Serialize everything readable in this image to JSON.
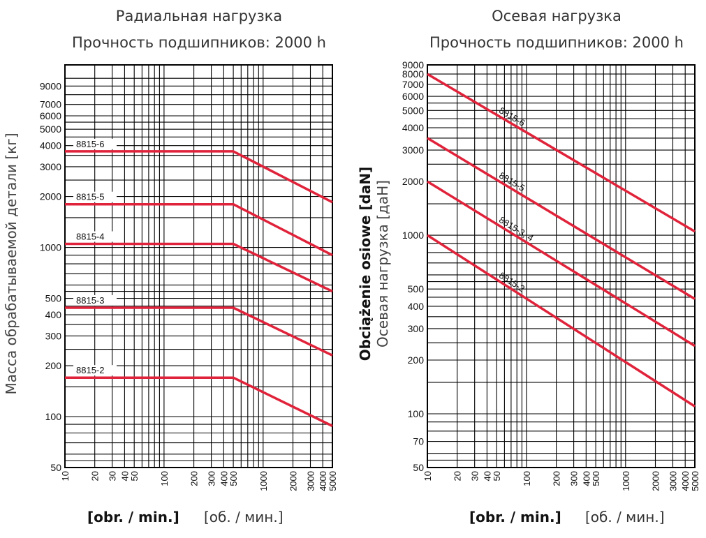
{
  "colors": {
    "series_line": "#e0233a",
    "grid": "#000000",
    "background": "#ffffff"
  },
  "chart_data": [
    {
      "type": "line",
      "title_line1": "Радиальная нагрузка",
      "title_line2": "Прочность подшипников: 2000 h",
      "ylabel": "Масса обрабатываемой детали [кг]",
      "xlabel_bold": "[obr. / min.]",
      "xlabel_thin": "[об. / мин.]",
      "x_scale": "log",
      "y_scale": "log",
      "xlim": [
        10,
        5000
      ],
      "ylim": [
        50,
        12000
      ],
      "x_ticks": [
        "10",
        "20",
        "30",
        "40",
        "50",
        "100",
        "200",
        "300",
        "400",
        "500",
        "1000",
        "2000",
        "3000",
        "4000",
        "5000"
      ],
      "y_ticks": [
        "50",
        "100",
        "200",
        "300",
        "400",
        "500",
        "1000",
        "2000",
        "3000",
        "4000",
        "5000",
        "6000",
        "7000",
        "9000"
      ],
      "grid": true,
      "series": [
        {
          "name": "8815-6",
          "points": [
            [
              10,
              3700
            ],
            [
              500,
              3700
            ],
            [
              5000,
              1850
            ]
          ]
        },
        {
          "name": "8815-5",
          "points": [
            [
              10,
              1800
            ],
            [
              500,
              1800
            ],
            [
              5000,
              900
            ]
          ]
        },
        {
          "name": "8815-4",
          "points": [
            [
              10,
              1050
            ],
            [
              500,
              1050
            ],
            [
              5000,
              550
            ]
          ]
        },
        {
          "name": "8815-3",
          "points": [
            [
              10,
              440
            ],
            [
              500,
              440
            ],
            [
              5000,
              230
            ]
          ]
        },
        {
          "name": "8815-2",
          "points": [
            [
              10,
              170
            ],
            [
              500,
              170
            ],
            [
              5000,
              88
            ]
          ]
        }
      ]
    },
    {
      "type": "line",
      "title_line1": "Осевая нагрузка",
      "title_line2": "Прочность подшипников: 2000 h",
      "ylabel_bold": "Obciążenie osiowe [daN]",
      "ylabel_thin": "Осевая нагрузка [даН]",
      "xlabel_bold": "[obr. / min.]",
      "xlabel_thin": "[об. / мин.]",
      "x_scale": "log",
      "y_scale": "log",
      "xlim": [
        10,
        5000
      ],
      "ylim": [
        50,
        9000
      ],
      "x_ticks": [
        "10",
        "20",
        "30",
        "40",
        "50",
        "100",
        "200",
        "300",
        "400",
        "500",
        "1000",
        "2000",
        "3000",
        "4000",
        "5000"
      ],
      "y_ticks": [
        "50",
        "70",
        "100",
        "200",
        "300",
        "400",
        "500",
        "1000",
        "2000",
        "3000",
        "4000",
        "5000",
        "6000",
        "7000",
        "8000",
        "9000"
      ],
      "grid": true,
      "series": [
        {
          "name": "8815-6",
          "points": [
            [
              10,
              8000
            ],
            [
              5000,
              1050
            ]
          ]
        },
        {
          "name": "8815-5",
          "points": [
            [
              10,
              3500
            ],
            [
              5000,
              440
            ]
          ]
        },
        {
          "name": "8815-3, 4",
          "points": [
            [
              10,
              2000
            ],
            [
              5000,
              240
            ]
          ]
        },
        {
          "name": "8815-2",
          "points": [
            [
              10,
              1000
            ],
            [
              5000,
              110
            ]
          ]
        }
      ]
    }
  ]
}
